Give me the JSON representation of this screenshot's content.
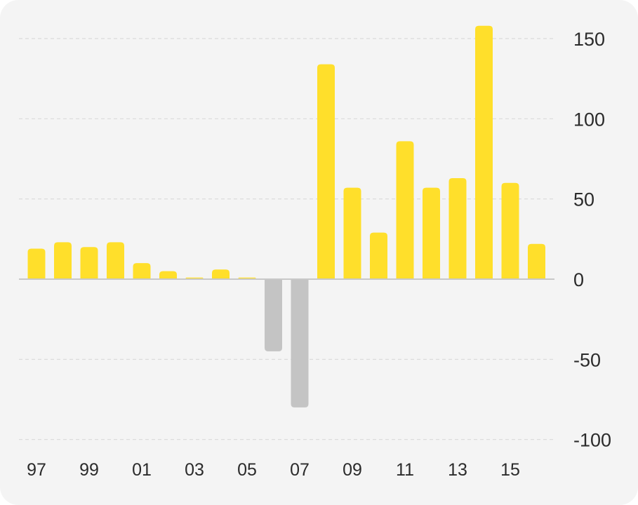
{
  "chart_data": {
    "type": "bar",
    "categories": [
      "1997",
      "1998",
      "1999",
      "2000",
      "2001",
      "2002",
      "2003",
      "2004",
      "2005",
      "2006",
      "2007",
      "2008",
      "2009",
      "2010",
      "2011",
      "2012",
      "2013",
      "2014",
      "2015",
      "2016"
    ],
    "values": [
      19,
      23,
      20,
      23,
      10,
      5,
      1,
      6,
      1,
      -45,
      -80,
      134,
      57,
      29,
      86,
      57,
      63,
      158,
      60,
      22
    ],
    "x_tick_labels": [
      "97",
      "99",
      "01",
      "03",
      "05",
      "07",
      "09",
      "11",
      "13",
      "15"
    ],
    "y_ticks": [
      150,
      100,
      50,
      0,
      -50,
      -100
    ],
    "y_tick_labels": [
      "150",
      "100",
      "50",
      "0",
      "-50",
      "-100"
    ],
    "ylim": [
      -100,
      150
    ],
    "title": "",
    "xlabel": "",
    "ylabel": "",
    "grid": "horizontal dashed",
    "y_axis_position": "right",
    "colors": {
      "positive": "#FFDF2B",
      "negative": "#C4C4C4",
      "grid": "#d9d9d9",
      "zero_line": "#c8c8c8",
      "background": "#f4f4f4"
    }
  }
}
